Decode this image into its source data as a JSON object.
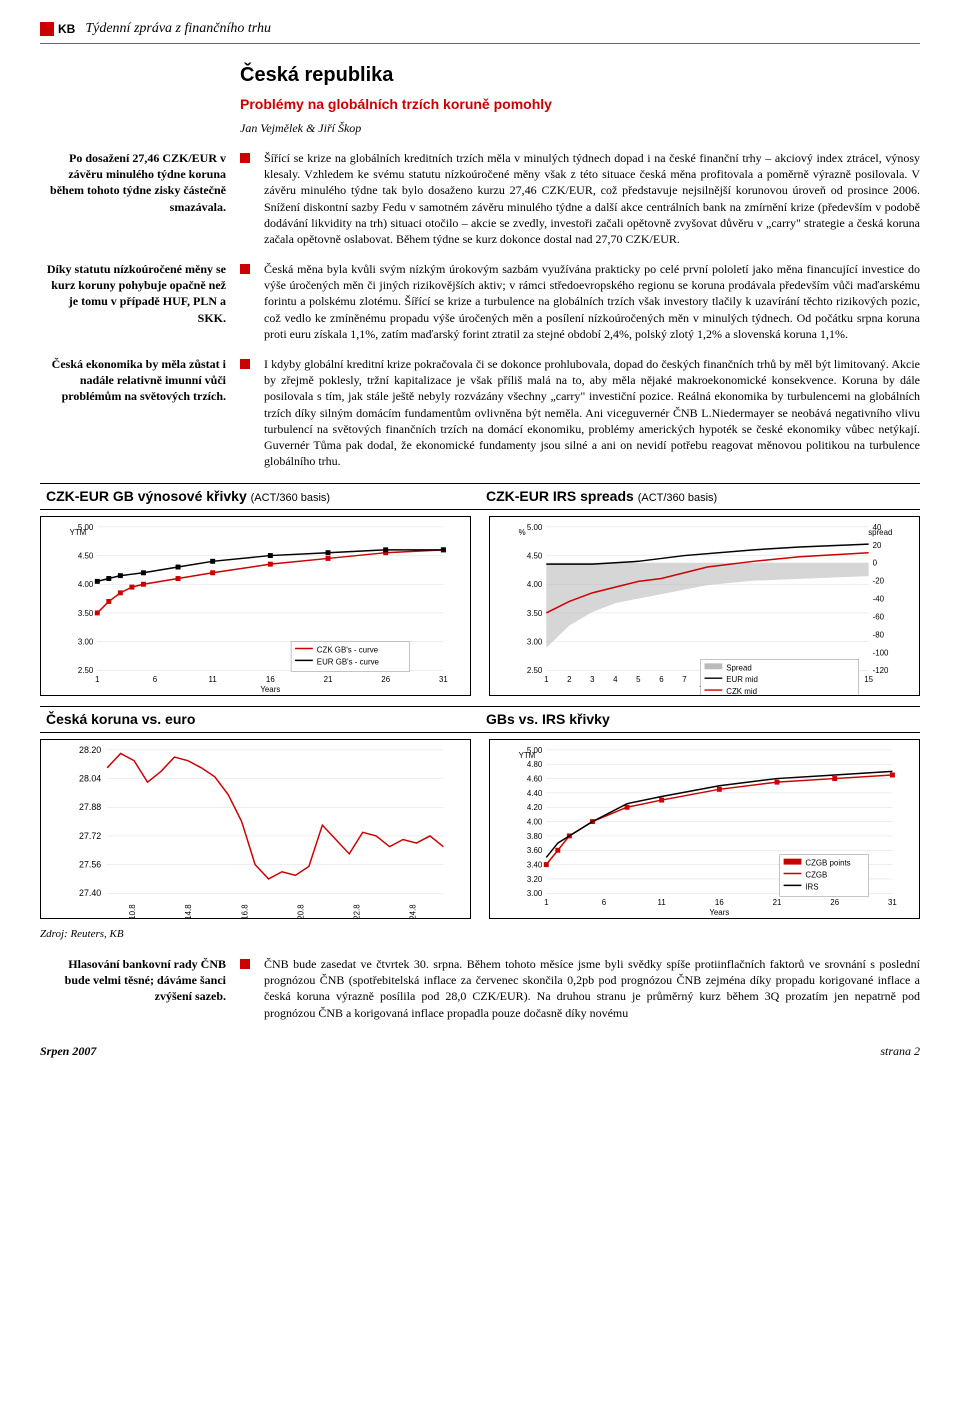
{
  "header": {
    "logo_text": "KB",
    "report_title": "Týdenní zpráva z finančního trhu"
  },
  "section": {
    "country": "Česká republika",
    "subtitle": "Problémy na globálních trzích koruně pomohly",
    "authors": "Jan Vejmělek & Jiří Škop"
  },
  "side1": "Po dosažení 27,46 CZK/EUR v závěru minulého týdne koruna během tohoto týdne zisky částečně smazávala.",
  "para1": "Šířící se krize na globálních kreditních trzích měla v minulých týdnech dopad i na české finanční trhy – akciový index ztrácel, výnosy klesaly. Vzhledem ke svému statutu nízkoúročené měny však z této situace česká měna profitovala a poměrně výrazně posilovala. V závěru minulého týdne tak bylo dosaženo kurzu 27,46 CZK/EUR, což představuje nejsilnější korunovou úroveň od prosince 2006. Snížení diskontní sazby Fedu v samotném závěru minulého týdne a další akce centrálních bank na zmírnění krize (především v podobě dodávání likvidity na trh) situaci otočilo – akcie se zvedly, investoři začali opětovně zvyšovat důvěru v „carry\" strategie a česká koruna začala opětovně oslabovat. Během týdne se kurz dokonce dostal nad 27,70 CZK/EUR.",
  "side2": "Díky statutu nízkoúročené měny se kurz koruny pohybuje opačně než je tomu v případě HUF, PLN a SKK.",
  "para2": "Česká měna byla kvůli svým nízkým úrokovým sazbám využívána prakticky po celé první pololetí jako měna financující investice do výše úročených měn či jiných rizikovějších aktiv; v rámci středoevropského regionu se koruna prodávala především vůči maďarskému forintu a polskému zlotému. Šířící se krize a turbulence na globálních trzích však investory tlačily k uzavírání těchto rizikových pozic, což vedlo ke zmíněnému propadu výše úročených měn a posílení nízkoúročených měn v minulých týdnech. Od počátku srpna koruna proti euru získala 1,1%, zatím maďarský forint ztratil za stejné období 2,4%, polský zlotý 1,2% a slovenská koruna 1,1%.",
  "side3": "Česká ekonomika by měla zůstat i nadále relativně imunní vůči problémům na světových trzích.",
  "para3": "I kdyby globální kreditní krize pokračovala či se dokonce prohlubovala, dopad do českých finančních trhů by měl být limitovaný. Akcie by zřejmě poklesly, tržní kapitalizace je však příliš malá na to, aby měla nějaké makroekonomické konsekvence. Koruna by dále posilovala s tím, jak stále ještě nebyly rozvázány všechny „carry\" investiční pozice. Reálná ekonomika by turbulencemi na globálních trzích díky silným domácím fundamentům ovlivněna být neměla. Ani viceguvernér ČNB L.Niedermayer se neobává negativního vlivu turbulencí na světových finančních trzích na domácí ekonomiku, problémy amerických hypoték se české ekonomiky vůbec netýkají. Guvernér Tůma pak dodal, že ekonomické fundamenty jsou silné a ani on nevidí potřebu reagovat měnovou politikou na turbulence globálního trhu.",
  "chart1": {
    "title": "CZK-EUR GB výnosové křivky",
    "sub": "(ACT/360 basis)",
    "ylabel": "YTM",
    "ylim": [
      2.5,
      5.0
    ],
    "ytick": [
      2.5,
      3.0,
      3.5,
      4.0,
      4.5,
      5.0
    ],
    "xlim": [
      1,
      31
    ],
    "xtick": [
      1,
      6,
      11,
      16,
      21,
      26,
      31
    ],
    "xlabel": "Years",
    "legend": [
      "CZK GB's - curve",
      "EUR GB's - curve"
    ],
    "czk": [
      [
        1,
        3.5
      ],
      [
        2,
        3.7
      ],
      [
        3,
        3.85
      ],
      [
        4,
        3.95
      ],
      [
        5,
        4.0
      ],
      [
        8,
        4.1
      ],
      [
        11,
        4.2
      ],
      [
        16,
        4.35
      ],
      [
        21,
        4.45
      ],
      [
        26,
        4.55
      ],
      [
        31,
        4.6
      ]
    ],
    "eur": [
      [
        1,
        4.05
      ],
      [
        2,
        4.1
      ],
      [
        3,
        4.15
      ],
      [
        5,
        4.2
      ],
      [
        8,
        4.3
      ],
      [
        11,
        4.4
      ],
      [
        16,
        4.5
      ],
      [
        21,
        4.55
      ],
      [
        26,
        4.6
      ],
      [
        31,
        4.6
      ]
    ],
    "czk_color": "#c00",
    "eur_color": "#000"
  },
  "chart2": {
    "title": "CZK-EUR IRS spreads",
    "sub": "(ACT/360 basis)",
    "ylabel": "%",
    "ylim": [
      2.5,
      5.0
    ],
    "ytick": [
      2.5,
      3.0,
      3.5,
      4.0,
      4.5,
      5.0
    ],
    "ylabel2": "spread",
    "ylim2": [
      -120,
      40
    ],
    "ytick2": [
      -120,
      -100,
      -80,
      -60,
      -40,
      -20,
      0,
      20,
      40
    ],
    "xlim": [
      1,
      15
    ],
    "xtick": [
      1,
      2,
      3,
      4,
      5,
      6,
      7,
      8,
      9,
      10,
      11,
      12,
      13,
      14,
      15
    ],
    "xlabel": "TTM",
    "legend": [
      "Spread",
      "EUR mid",
      "CZK mid"
    ],
    "czk": [
      [
        1,
        3.5
      ],
      [
        2,
        3.7
      ],
      [
        3,
        3.85
      ],
      [
        4,
        3.95
      ],
      [
        5,
        4.05
      ],
      [
        6,
        4.1
      ],
      [
        7,
        4.2
      ],
      [
        8,
        4.3
      ],
      [
        10,
        4.4
      ],
      [
        12,
        4.48
      ],
      [
        15,
        4.55
      ]
    ],
    "eur": [
      [
        1,
        4.35
      ],
      [
        2,
        4.35
      ],
      [
        3,
        4.35
      ],
      [
        5,
        4.4
      ],
      [
        7,
        4.5
      ],
      [
        10,
        4.6
      ],
      [
        12,
        4.65
      ],
      [
        15,
        4.7
      ]
    ],
    "spread": [
      [
        1,
        -95
      ],
      [
        2,
        -70
      ],
      [
        3,
        -55
      ],
      [
        4,
        -45
      ],
      [
        5,
        -40
      ],
      [
        6,
        -35
      ],
      [
        7,
        -30
      ],
      [
        8,
        -25
      ],
      [
        10,
        -20
      ],
      [
        12,
        -18
      ],
      [
        15,
        -15
      ]
    ],
    "czk_color": "#c00",
    "eur_color": "#000",
    "spread_fill": "#bbb"
  },
  "chart3": {
    "title": "Česká koruna vs. euro",
    "ylim": [
      27.4,
      28.2
    ],
    "ytick": [
      27.4,
      27.56,
      27.72,
      27.88,
      28.04,
      28.2
    ],
    "xtick": [
      "10.8",
      "14.8",
      "16.8",
      "20.8",
      "22.8",
      "24.8"
    ],
    "line_color": "#c00",
    "series": [
      [
        0,
        28.1
      ],
      [
        4,
        28.18
      ],
      [
        8,
        28.14
      ],
      [
        12,
        28.02
      ],
      [
        16,
        28.08
      ],
      [
        20,
        28.16
      ],
      [
        24,
        28.14
      ],
      [
        28,
        28.1
      ],
      [
        32,
        28.05
      ],
      [
        36,
        27.95
      ],
      [
        40,
        27.8
      ],
      [
        44,
        27.56
      ],
      [
        48,
        27.48
      ],
      [
        52,
        27.52
      ],
      [
        56,
        27.5
      ],
      [
        60,
        27.55
      ],
      [
        64,
        27.78
      ],
      [
        68,
        27.7
      ],
      [
        72,
        27.62
      ],
      [
        76,
        27.74
      ],
      [
        80,
        27.72
      ],
      [
        84,
        27.66
      ],
      [
        88,
        27.7
      ],
      [
        92,
        27.68
      ],
      [
        96,
        27.72
      ],
      [
        100,
        27.66
      ]
    ]
  },
  "chart4": {
    "title": "GBs vs. IRS křivky",
    "ylabel": "YTM",
    "ylim": [
      3.0,
      5.0
    ],
    "ytick": [
      3.0,
      3.2,
      3.4,
      3.6,
      3.8,
      4.0,
      4.2,
      4.4,
      4.6,
      4.8,
      5.0
    ],
    "xlim": [
      1,
      31
    ],
    "xtick": [
      1,
      6,
      11,
      16,
      21,
      26,
      31
    ],
    "xlabel": "Years",
    "legend": [
      "CZGB points",
      "CZGB",
      "IRS"
    ],
    "czgb": [
      [
        1,
        3.4
      ],
      [
        2,
        3.6
      ],
      [
        3,
        3.8
      ],
      [
        5,
        4.0
      ],
      [
        8,
        4.2
      ],
      [
        11,
        4.3
      ],
      [
        16,
        4.45
      ],
      [
        21,
        4.55
      ],
      [
        26,
        4.6
      ],
      [
        31,
        4.65
      ]
    ],
    "irs": [
      [
        1,
        3.5
      ],
      [
        2,
        3.7
      ],
      [
        5,
        4.0
      ],
      [
        8,
        4.25
      ],
      [
        11,
        4.35
      ],
      [
        16,
        4.5
      ],
      [
        21,
        4.6
      ],
      [
        26,
        4.65
      ],
      [
        31,
        4.7
      ]
    ],
    "czgb_color": "#c00",
    "irs_color": "#000"
  },
  "source": "Zdroj: Reuters, KB",
  "side4": "Hlasování bankovní rady ČNB bude velmi těsné; dáváme šanci zvýšení sazeb.",
  "para4": "ČNB bude zasedat ve čtvrtek 30. srpna. Během tohoto měsíce jsme byli svědky spíše protiinflačních faktorů ve srovnání s poslední prognózou ČNB (spotřebitelská inflace za červenec skončila 0,2pb pod prognózou ČNB zejména díky propadu korigované inflace a česká koruna výrazně posílila pod 28,0 CZK/EUR). Na druhou stranu je průměrný kurz během 3Q prozatím jen nepatrně pod prognózou ČNB a korigovaná inflace propadla pouze dočasně díky novému",
  "footer": {
    "left": "Srpen 2007",
    "right": "strana 2"
  }
}
